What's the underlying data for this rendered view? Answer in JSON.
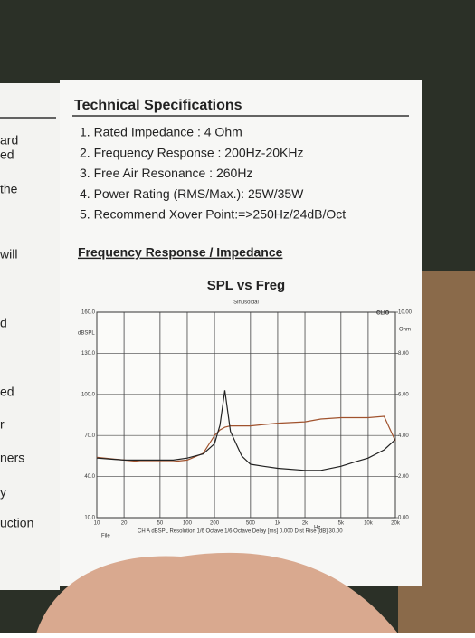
{
  "left_fragments": [
    "ard",
    "ed",
    "the",
    "will",
    "d",
    "ed",
    "r",
    "ners",
    "y",
    "uction"
  ],
  "heading": "Technical Specifications",
  "specs": [
    "1. Rated Impedance : 4 Ohm",
    "2. Frequency Response : 200Hz-20KHz",
    "3. Free Air Resonance : 260Hz",
    "4. Power Rating (RMS/Max.): 25W/35W",
    "5. Recommend Xover Point:=>250Hz/24dB/Oct"
  ],
  "section_title": "Frequency Response / Impedance",
  "chart_data": {
    "type": "line",
    "title": "SPL vs Freg",
    "subtitle": "Sinusoidal",
    "brand": "CLIO",
    "ylabel": "dBSPL",
    "y2label": "Ohm",
    "xlabel": "Hz",
    "footer_left": "File",
    "footer": "CH A  dBSPL  Resolution 1/6 Octave   1/6 Octave  Delay [ms] 0.000   Dist Rise [dB] 30.00",
    "log_x": true,
    "grid": true,
    "xlim": [
      10,
      20000
    ],
    "xticks": [
      10,
      20,
      50,
      100,
      200,
      500,
      {
        "value": 1000,
        "label": "1k"
      },
      {
        "value": 2000,
        "label": "2k"
      },
      {
        "value": 5000,
        "label": "5k"
      },
      {
        "value": 10000,
        "label": "10k"
      },
      {
        "value": 20000,
        "label": "20k"
      }
    ],
    "ylim": [
      10,
      160
    ],
    "yticks": [
      {
        "value": 10,
        "label": "10.0"
      },
      {
        "value": 40,
        "label": "40.0"
      },
      {
        "value": 70,
        "label": "70.0"
      },
      {
        "value": 100,
        "label": "100.0"
      },
      {
        "value": 130,
        "label": "130.0"
      },
      {
        "value": 160,
        "label": "160.0"
      }
    ],
    "y2lim": [
      0,
      10
    ],
    "y2ticks": [
      {
        "value": 0,
        "label": "0.00"
      },
      {
        "value": 2,
        "label": "2.00"
      },
      {
        "value": 4,
        "label": "4.00"
      },
      {
        "value": 6,
        "label": "6.00"
      },
      {
        "value": 8,
        "label": "8.00"
      },
      {
        "value": 10,
        "label": "10.00"
      }
    ],
    "x": [
      10,
      20,
      30,
      50,
      70,
      100,
      150,
      200,
      230,
      260,
      300,
      400,
      500,
      700,
      1000,
      2000,
      3000,
      5000,
      7000,
      10000,
      15000,
      20000
    ],
    "series": [
      {
        "color": "#a0522d",
        "values": [
          54,
          52,
          51,
          51,
          51,
          52,
          57,
          70,
          74,
          76,
          77,
          77,
          77,
          78,
          79,
          80,
          82,
          83,
          83,
          83,
          84,
          66
        ]
      },
      {
        "color": "#222222",
        "axis": "y2",
        "values": [
          2.9,
          2.8,
          2.8,
          2.8,
          2.8,
          2.9,
          3.1,
          3.6,
          4.5,
          6.2,
          4.2,
          3.0,
          2.6,
          2.5,
          2.4,
          2.3,
          2.3,
          2.5,
          2.7,
          2.9,
          3.3,
          3.8
        ]
      }
    ]
  }
}
